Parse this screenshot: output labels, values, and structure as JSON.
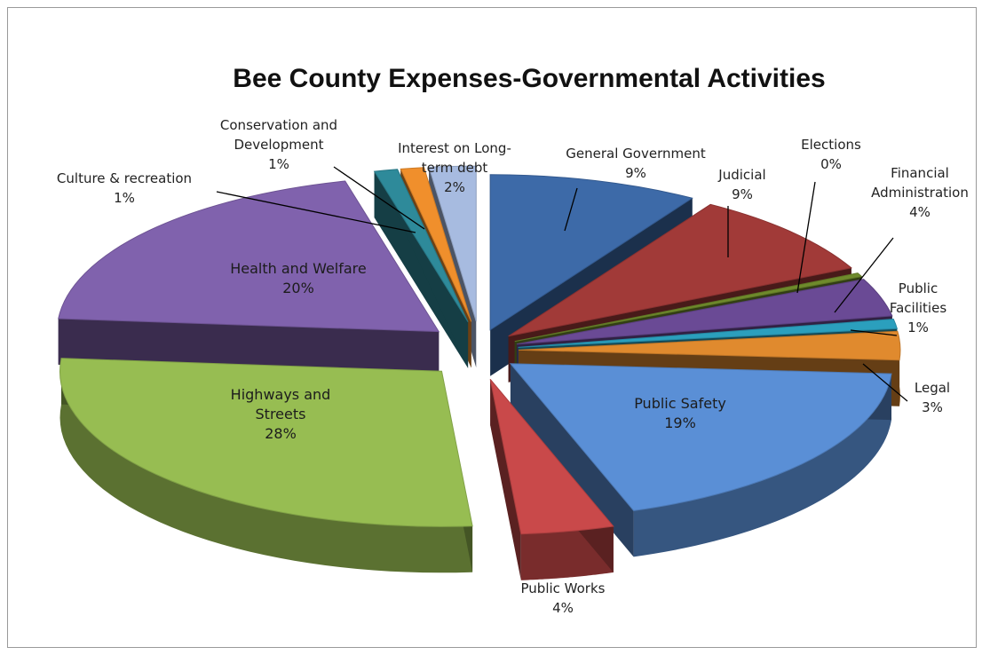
{
  "chart_data": {
    "type": "pie",
    "title": "Bee County Expenses-Governmental Activities",
    "slices": [
      {
        "name": "General Government",
        "label_lines": [
          "General Government",
          "9%"
        ],
        "value": 9,
        "color": "#3d6aa8"
      },
      {
        "name": "Judicial",
        "label_lines": [
          "Judicial",
          "9%"
        ],
        "value": 9,
        "color": "#a13a38"
      },
      {
        "name": "Elections",
        "label_lines": [
          "Elections",
          "0%"
        ],
        "value": 0.4,
        "color": "#6f8a2c"
      },
      {
        "name": "Financial Administration",
        "label_lines": [
          "Financial",
          "Administration",
          "4%"
        ],
        "value": 4,
        "color": "#6a4a95"
      },
      {
        "name": "Public Facilities",
        "label_lines": [
          "Public",
          "Facilities",
          "1%"
        ],
        "value": 1,
        "color": "#2b9fbd"
      },
      {
        "name": "Legal",
        "label_lines": [
          "Legal",
          "3%"
        ],
        "value": 3,
        "color": "#e08a2e"
      },
      {
        "name": "Public Safety",
        "label_lines": [
          "Public Safety",
          "19%"
        ],
        "value": 19,
        "color": "#5a8fd6"
      },
      {
        "name": "Public Works",
        "label_lines": [
          "Public Works",
          "4%"
        ],
        "value": 4,
        "color": "#c9494a"
      },
      {
        "name": "Highways and Streets",
        "label_lines": [
          "Highways and",
          "Streets",
          "28%"
        ],
        "value": 28,
        "color": "#97bd52"
      },
      {
        "name": "Health and Welfare",
        "label_lines": [
          "Health and Welfare",
          "20%"
        ],
        "value": 20,
        "color": "#8062ad"
      },
      {
        "name": "Culture & recreation",
        "label_lines": [
          "Culture & recreation",
          "1%"
        ],
        "value": 1,
        "color": "#2e8a9a"
      },
      {
        "name": "Conservation and Development",
        "label_lines": [
          "Conservation and",
          "Development",
          "1%"
        ],
        "value": 1,
        "color": "#f08f2c"
      },
      {
        "name": "Interest on Long-term debt",
        "label_lines": [
          "Interest on Long-",
          "term debt",
          "2%"
        ],
        "value": 2,
        "color": "#a7bbe0"
      }
    ],
    "legend": "none",
    "style": "3D exploded pie with leader lines"
  }
}
